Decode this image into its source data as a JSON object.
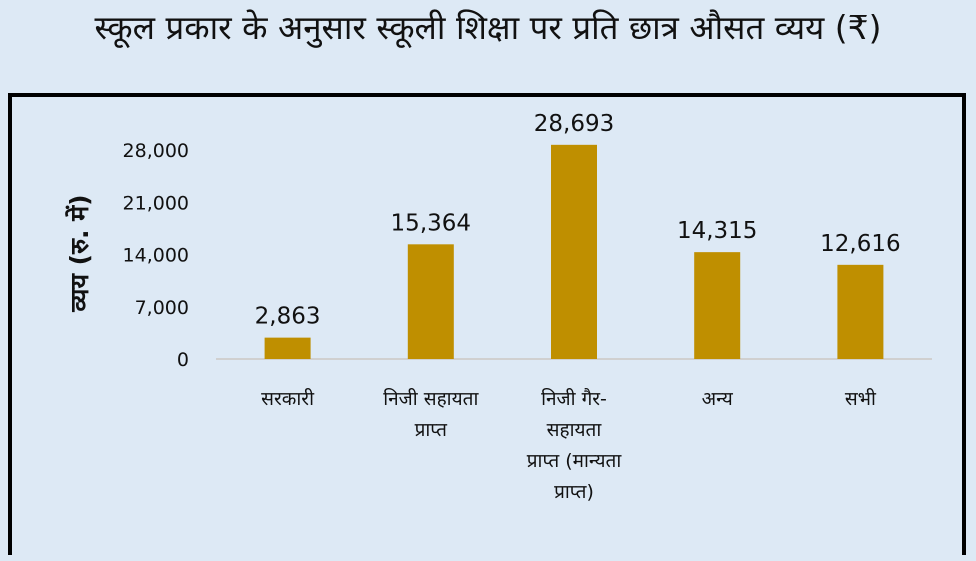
{
  "chart_data": {
    "type": "bar",
    "title": "स्कूल प्रकार के अनुसार स्कूली शिक्षा पर प्रति छात्र औसत व्यय (₹)",
    "ylabel": "व्यय (रु. में)",
    "xlabel": "",
    "categories": [
      [
        "सरकारी"
      ],
      [
        "निजी सहायता",
        "प्राप्त"
      ],
      [
        "निजी गैर-",
        "सहायता",
        "प्राप्त (मान्यता",
        "प्राप्त)"
      ],
      [
        "अन्य"
      ],
      [
        "सभी"
      ]
    ],
    "values": [
      2863,
      15364,
      28693,
      14315,
      12616
    ],
    "value_labels": [
      "2,863",
      "15,364",
      "28,693",
      "14,315",
      "12,616"
    ],
    "yticks": [
      "0",
      "7,000",
      "14,000",
      "21,000",
      "28,000"
    ],
    "ytick_values": [
      0,
      7000,
      14000,
      21000,
      28000
    ],
    "ylim": [
      0,
      28000
    ],
    "grid": false,
    "colors": {
      "bar": "#bf8f00",
      "axis": "#d0d0d0",
      "background": "#dde9f5"
    }
  }
}
